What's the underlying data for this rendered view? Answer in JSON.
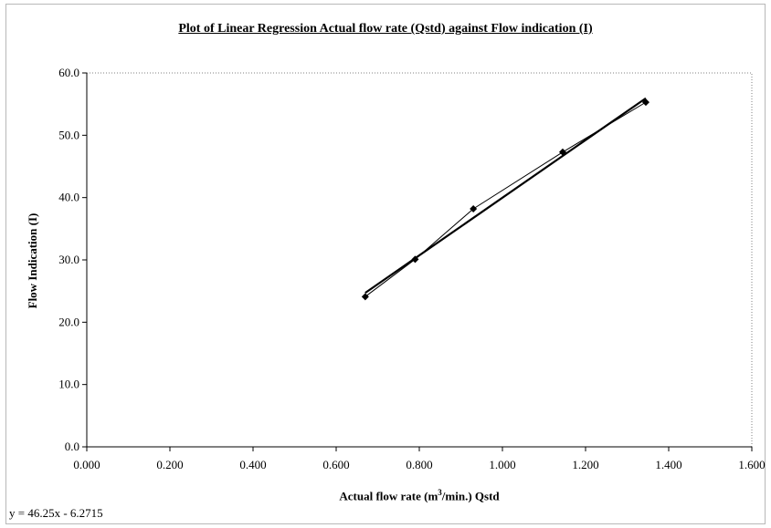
{
  "chart_data": {
    "type": "scatter",
    "title": "Plot of Linear Regression Actual flow rate (Qstd) against Flow indication (I)",
    "xlabel_parts": [
      "Actual flow rate (m",
      "3",
      "/min.) Qstd"
    ],
    "ylabel": "Flow Indication (I)",
    "xlim": [
      0,
      1.6
    ],
    "ylim": [
      0,
      60
    ],
    "x_ticks": [
      "0.000",
      "0.200",
      "0.400",
      "0.600",
      "0.800",
      "1.000",
      "1.200",
      "1.400",
      "1.600"
    ],
    "y_ticks": [
      "0.0",
      "10.0",
      "20.0",
      "30.0",
      "40.0",
      "50.0",
      "60.0"
    ],
    "series": [
      {
        "x": [
          0.67,
          0.79,
          0.93,
          1.145,
          1.345
        ],
        "y": [
          24.1,
          30.1,
          38.2,
          47.3,
          55.3
        ]
      }
    ],
    "trendline": {
      "slope": 46.25,
      "intercept": -6.2715,
      "x_range": [
        0.67,
        1.345
      ]
    },
    "equation": "y = 46.25x - 6.2715",
    "grid": false,
    "colors": {
      "series": "#000000",
      "axis": "#000000",
      "plot_border": "#808080"
    }
  }
}
